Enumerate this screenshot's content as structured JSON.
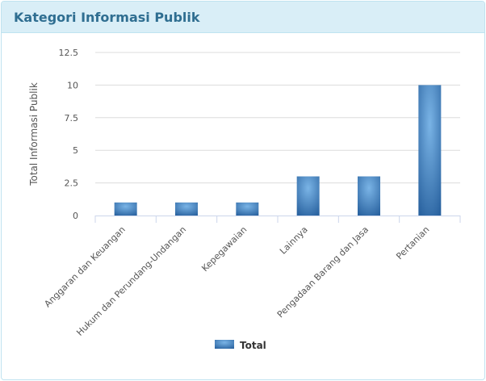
{
  "panel": {
    "title": "Kategori Informasi Publik"
  },
  "chart_data": {
    "type": "bar",
    "title": "",
    "xlabel": "",
    "ylabel": "Total Informasi Publik",
    "categories": [
      "Anggaran dan Keuangan",
      "Hukum dan Perundang-Undangan",
      "Kepegawaian",
      "Lainnya",
      "Pengadaan Barang dan Jasa",
      "Pertanian"
    ],
    "series": [
      {
        "name": "Total",
        "values": [
          1,
          1,
          1,
          3,
          3,
          10
        ],
        "color": "#4a8cd0"
      }
    ],
    "ylim": [
      0,
      12.5
    ],
    "yticks": [
      0,
      2.5,
      5,
      7.5,
      10,
      12.5
    ],
    "ytick_labels": [
      "0",
      "2.5",
      "5",
      "7.5",
      "10",
      "12.5"
    ],
    "grid": true,
    "legend": "bottom"
  }
}
